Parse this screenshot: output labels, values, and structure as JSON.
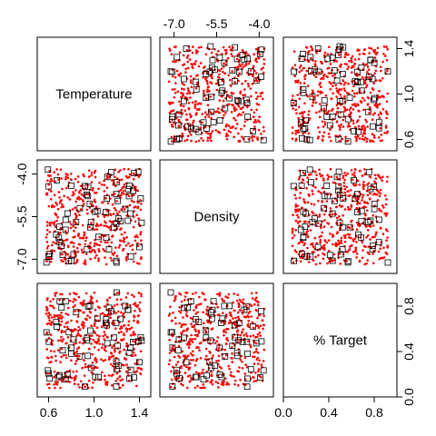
{
  "chart_data": {
    "type": "scatter",
    "variables": [
      {
        "name": "Temperature",
        "range": [
          0.5,
          1.5
        ],
        "ticks": [
          0.6,
          1.0,
          1.4
        ],
        "tick_labels": [
          "0.6",
          "1.0",
          "1.4"
        ]
      },
      {
        "name": "Density",
        "range": [
          -7.5,
          -3.5
        ],
        "ticks": [
          -7.0,
          -5.5,
          -4.0
        ],
        "tick_labels": [
          "-7.0",
          "-5.5",
          "-4.0"
        ]
      },
      {
        "name": "% Target",
        "range": [
          0.0,
          1.0
        ],
        "ticks": [
          0.0,
          0.4,
          0.8
        ],
        "tick_labels": [
          "0.0",
          "0.4",
          "0.8"
        ]
      }
    ],
    "series": [
      {
        "marker": "small red dot",
        "color": "#ff0000",
        "n_points_approx": 500
      },
      {
        "marker": "open black square",
        "color": "#000000",
        "n_points_approx": 60
      }
    ],
    "layout": "3x3 pairs matrix, variable names on diagonal"
  }
}
